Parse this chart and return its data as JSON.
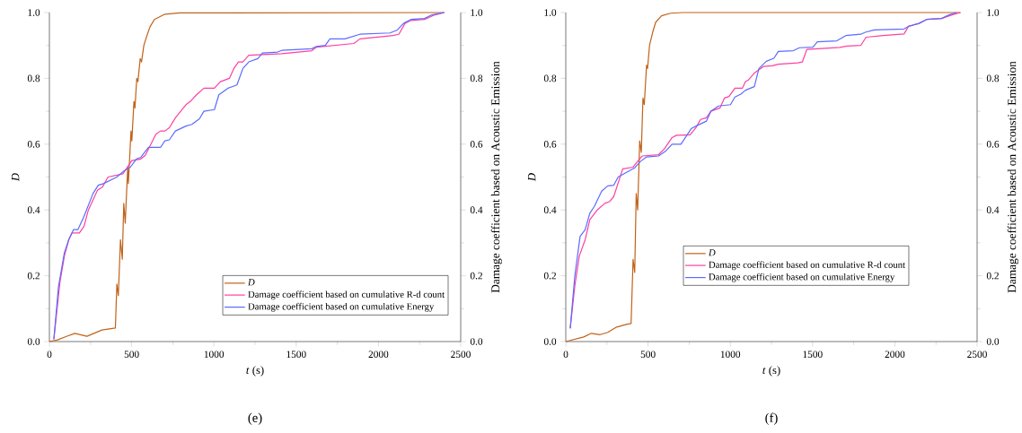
{
  "chart_data": [
    {
      "type": "line",
      "xlabel": "*t* (s)",
      "ylabel": "D",
      "y2label": "Damage coefficient based on Acoustic Emission",
      "annotations": [
        "(e)"
      ],
      "legend": "bottom right",
      "xlim": [
        0,
        2500
      ],
      "ylim": [
        0,
        1
      ],
      "y2lim": [
        0,
        1
      ],
      "xticks": [
        0,
        500,
        1000,
        1500,
        2000,
        2500
      ],
      "yticks": [
        {
          "value": 0,
          "label": "0.0"
        },
        {
          "value": 0.2,
          "label": "0.2"
        },
        {
          "value": 0.4,
          "label": "0.4"
        },
        {
          "value": 0.6,
          "label": "0.6"
        },
        {
          "value": 0.8,
          "label": "0.8"
        },
        {
          "value": 1,
          "label": "1.0"
        }
      ],
      "y2ticks": [
        {
          "value": 0,
          "label": "0.0"
        },
        {
          "value": 0.2,
          "label": "0.2"
        },
        {
          "value": 0.4,
          "label": "0.4"
        },
        {
          "value": 0.6,
          "label": "0.6"
        },
        {
          "value": 0.8,
          "label": "0.8"
        },
        {
          "value": 1,
          "label": "1.0"
        }
      ],
      "series": [
        {
          "name": "D",
          "color": "#c0631a",
          "axis": "y",
          "x": [
            0,
            50,
            100,
            155,
            228,
            319,
            401,
            410,
            419,
            432,
            443,
            452,
            461,
            476,
            480,
            496,
            501,
            514,
            520,
            531,
            538,
            552,
            560,
            574,
            593,
            611,
            638,
            702,
            793,
            2400
          ],
          "values": [
            0,
            0.005,
            0.015,
            0.025,
            0.016,
            0.035,
            0.041,
            0.175,
            0.14,
            0.31,
            0.25,
            0.42,
            0.36,
            0.53,
            0.48,
            0.64,
            0.61,
            0.73,
            0.71,
            0.8,
            0.79,
            0.86,
            0.85,
            0.9,
            0.93,
            0.956,
            0.979,
            0.995,
            0.999,
            1.0
          ]
        },
        {
          "name": "Damage coefficient based on cumulative R-d count",
          "color": "#ff3fa0",
          "axis": "y2",
          "x": [
            27,
            64,
            91,
            118,
            137,
            182,
            210,
            237,
            292,
            323,
            356,
            447,
            501,
            556,
            583,
            647,
            675,
            702,
            729,
            766,
            830,
            857,
            894,
            939,
            1003,
            1039,
            1094,
            1121,
            1149,
            1176,
            1212,
            1413,
            1595,
            1623,
            1851,
            1887,
            2088,
            2124,
            2161,
            2197,
            2280,
            2343,
            2400
          ],
          "values": [
            0.007,
            0.18,
            0.26,
            0.31,
            0.33,
            0.33,
            0.35,
            0.4,
            0.46,
            0.47,
            0.5,
            0.51,
            0.55,
            0.555,
            0.566,
            0.63,
            0.64,
            0.64,
            0.65,
            0.68,
            0.72,
            0.73,
            0.75,
            0.77,
            0.77,
            0.79,
            0.8,
            0.83,
            0.85,
            0.85,
            0.87,
            0.875,
            0.884,
            0.895,
            0.906,
            0.92,
            0.93,
            0.934,
            0.967,
            0.976,
            0.979,
            0.993,
            1.0
          ]
        },
        {
          "name": "Damage coefficient based on cumulative Energy",
          "color": "#5b6bff",
          "axis": "y2",
          "x": [
            27,
            55,
            91,
            118,
            146,
            173,
            210,
            265,
            297,
            328,
            410,
            456,
            492,
            529,
            556,
            602,
            675,
            702,
            729,
            766,
            830,
            866,
            912,
            939,
            1003,
            1030,
            1085,
            1140,
            1176,
            1212,
            1267,
            1295,
            1386,
            1413,
            1595,
            1623,
            1677,
            1705,
            1796,
            1887,
            2070,
            2115,
            2152,
            2197,
            2280,
            2325,
            2400
          ],
          "values": [
            0.007,
            0.166,
            0.27,
            0.31,
            0.34,
            0.34,
            0.38,
            0.45,
            0.475,
            0.48,
            0.5,
            0.52,
            0.53,
            0.555,
            0.56,
            0.59,
            0.59,
            0.61,
            0.613,
            0.64,
            0.655,
            0.66,
            0.677,
            0.7,
            0.705,
            0.75,
            0.77,
            0.78,
            0.83,
            0.85,
            0.86,
            0.877,
            0.88,
            0.885,
            0.89,
            0.897,
            0.9,
            0.92,
            0.92,
            0.934,
            0.938,
            0.947,
            0.967,
            0.979,
            0.982,
            0.993,
            1.0
          ]
        }
      ]
    },
    {
      "type": "line",
      "xlabel": "*t* (s)",
      "ylabel": "D",
      "y2label": "Damage coefficient based on Acoustic Emission",
      "annotations": [
        "(f)"
      ],
      "legend": "bottom",
      "xlim": [
        0,
        2500
      ],
      "ylim": [
        0,
        1
      ],
      "y2lim": [
        0,
        1
      ],
      "xticks": [
        0,
        500,
        1000,
        1500,
        2000,
        2500
      ],
      "yticks": [
        {
          "value": 0,
          "label": "0.0"
        },
        {
          "value": 0.2,
          "label": "0.2"
        },
        {
          "value": 0.4,
          "label": "0.4"
        },
        {
          "value": 0.6,
          "label": "0.6"
        },
        {
          "value": 0.8,
          "label": "0.8"
        },
        {
          "value": 1,
          "label": "1.0"
        }
      ],
      "y2ticks": [
        {
          "value": 0,
          "label": "0.0"
        },
        {
          "value": 0.2,
          "label": "0.2"
        },
        {
          "value": 0.4,
          "label": "0.4"
        },
        {
          "value": 0.6,
          "label": "0.6"
        },
        {
          "value": 0.8,
          "label": "0.8"
        },
        {
          "value": 1,
          "label": "1.0"
        }
      ],
      "series": [
        {
          "name": "D",
          "color": "#c0631a",
          "axis": "y",
          "x": [
            0,
            109,
            155,
            209,
            255,
            309,
            373,
            397,
            409,
            419,
            428,
            437,
            449,
            459,
            469,
            477,
            491,
            497,
            509,
            528,
            546,
            582,
            637,
            710,
            2400
          ],
          "values": [
            0,
            0.014,
            0.025,
            0.021,
            0.028,
            0.044,
            0.053,
            0.055,
            0.25,
            0.21,
            0.45,
            0.4,
            0.61,
            0.575,
            0.74,
            0.72,
            0.84,
            0.83,
            0.9,
            0.94,
            0.97,
            0.99,
            0.998,
            1.0,
            1.0
          ]
        },
        {
          "name": "Damage coefficient based on cumulative R-d count",
          "color": "#ff3fa0",
          "axis": "y2",
          "x": [
            27,
            55,
            82,
            118,
            146,
            191,
            237,
            264,
            291,
            346,
            409,
            437,
            464,
            564,
            600,
            646,
            673,
            755,
            791,
            819,
            855,
            882,
            937,
            964,
            992,
            1028,
            1073,
            1092,
            1110,
            1146,
            1201,
            1255,
            1292,
            1410,
            1438,
            1465,
            1665,
            1711,
            1793,
            1825,
            1929,
            2056,
            2083,
            2147,
            2193,
            2284,
            2347,
            2398
          ],
          "values": [
            0.04,
            0.17,
            0.26,
            0.31,
            0.37,
            0.4,
            0.42,
            0.425,
            0.44,
            0.525,
            0.53,
            0.548,
            0.564,
            0.568,
            0.586,
            0.62,
            0.627,
            0.628,
            0.65,
            0.675,
            0.68,
            0.7,
            0.71,
            0.74,
            0.745,
            0.77,
            0.77,
            0.79,
            0.795,
            0.816,
            0.836,
            0.838,
            0.843,
            0.847,
            0.85,
            0.888,
            0.894,
            0.898,
            0.9,
            0.925,
            0.93,
            0.935,
            0.958,
            0.967,
            0.979,
            0.982,
            0.993,
            1.0
          ]
        },
        {
          "name": "Damage coefficient based on cumulative Energy",
          "color": "#5b6bff",
          "axis": "y2",
          "x": [
            27,
            55,
            87,
            118,
            146,
            173,
            218,
            255,
            291,
            318,
            364,
            419,
            455,
            491,
            564,
            609,
            646,
            700,
            764,
            800,
            855,
            882,
            928,
            1001,
            1028,
            1064,
            1092,
            1146,
            1174,
            1219,
            1265,
            1292,
            1383,
            1420,
            1502,
            1529,
            1647,
            1702,
            1793,
            1820,
            1875,
            2056,
            2083,
            2147,
            2193,
            2284,
            2329,
            2375
          ],
          "values": [
            0.04,
            0.2,
            0.32,
            0.34,
            0.39,
            0.41,
            0.457,
            0.473,
            0.475,
            0.5,
            0.513,
            0.528,
            0.548,
            0.561,
            0.564,
            0.58,
            0.6,
            0.6,
            0.648,
            0.657,
            0.67,
            0.7,
            0.716,
            0.72,
            0.743,
            0.752,
            0.764,
            0.775,
            0.83,
            0.852,
            0.861,
            0.882,
            0.884,
            0.893,
            0.895,
            0.911,
            0.914,
            0.93,
            0.934,
            0.94,
            0.947,
            0.95,
            0.958,
            0.967,
            0.979,
            0.982,
            0.993,
            1.0
          ]
        }
      ]
    }
  ]
}
